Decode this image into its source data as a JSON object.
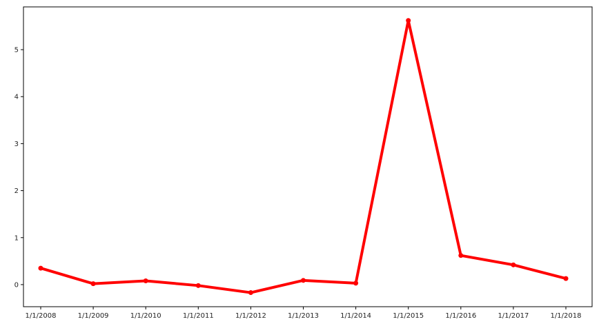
{
  "chart_data": {
    "type": "line",
    "title": "",
    "xlabel": "",
    "ylabel": "",
    "categories": [
      "1/1/2008",
      "1/1/2009",
      "1/1/2010",
      "1/1/2011",
      "1/1/2012",
      "1/1/2013",
      "1/1/2014",
      "1/1/2015",
      "1/1/2016",
      "1/1/2017",
      "1/1/2018"
    ],
    "series": [
      {
        "values": [
          0.35,
          0.02,
          0.08,
          -0.02,
          -0.17,
          0.09,
          0.03,
          5.62,
          0.62,
          0.42,
          0.13
        ],
        "color": "#ff0000",
        "marker": "circle"
      }
    ],
    "ylim": [
      -0.47,
      5.91
    ],
    "yticks": [
      0,
      1,
      2,
      3,
      4,
      5
    ],
    "ytick_labels": [
      "0",
      "1",
      "2",
      "3",
      "4",
      "5"
    ],
    "grid": false,
    "legend": "none"
  }
}
